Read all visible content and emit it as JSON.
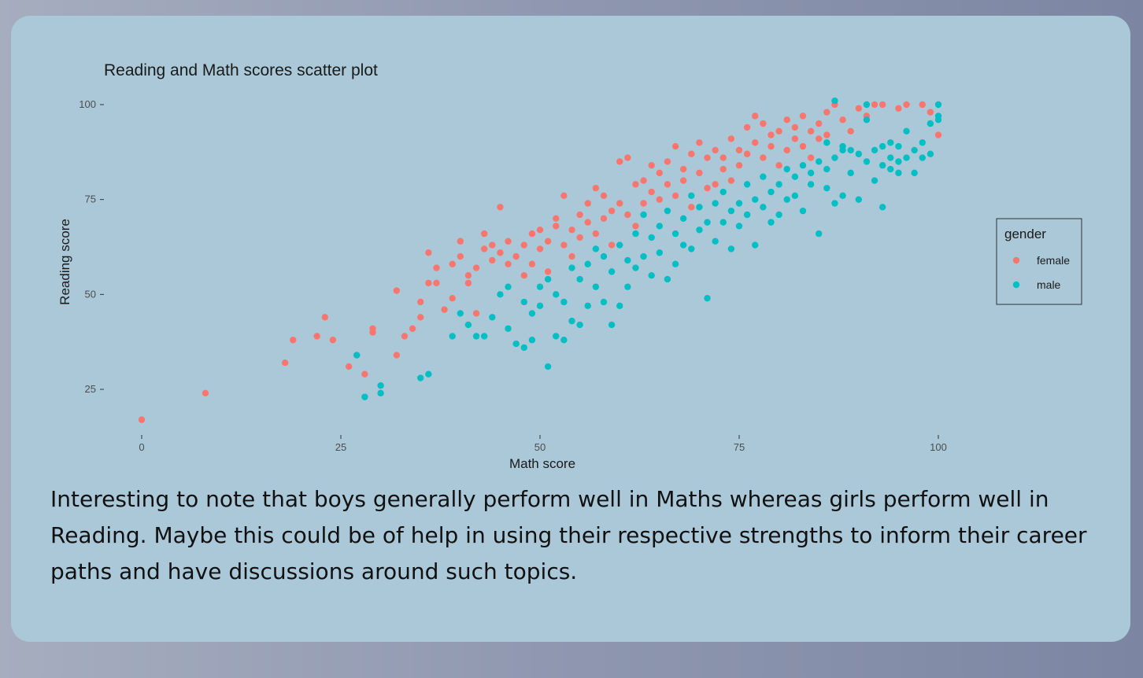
{
  "colors": {
    "female": "#f8766d",
    "male": "#00bfc4",
    "panel": "#aac8d8"
  },
  "chart_data": {
    "type": "scatter",
    "title": "Reading and Math scores scatter plot",
    "xlabel": "Math score",
    "ylabel": "Reading score",
    "xlim": [
      0,
      100
    ],
    "ylim": [
      17,
      100
    ],
    "xticks": [
      0,
      25,
      50,
      75,
      100
    ],
    "yticks": [
      25,
      50,
      75,
      100
    ],
    "grid": false,
    "legend": {
      "title": "gender",
      "position": "right",
      "entries": [
        "female",
        "male"
      ]
    },
    "series": [
      {
        "name": "female",
        "color": "#f8766d",
        "points": [
          [
            0,
            17
          ],
          [
            8,
            24
          ],
          [
            18,
            32
          ],
          [
            19,
            38
          ],
          [
            22,
            39
          ],
          [
            23,
            44
          ],
          [
            24,
            38
          ],
          [
            26,
            31
          ],
          [
            27,
            34
          ],
          [
            28,
            29
          ],
          [
            29,
            40
          ],
          [
            29,
            41
          ],
          [
            32,
            51
          ],
          [
            32,
            34
          ],
          [
            33,
            39
          ],
          [
            34,
            41
          ],
          [
            35,
            44
          ],
          [
            35,
            48
          ],
          [
            36,
            53
          ],
          [
            36,
            61
          ],
          [
            37,
            57
          ],
          [
            37,
            53
          ],
          [
            38,
            46
          ],
          [
            39,
            49
          ],
          [
            39,
            58
          ],
          [
            40,
            64
          ],
          [
            40,
            60
          ],
          [
            41,
            55
          ],
          [
            41,
            53
          ],
          [
            42,
            45
          ],
          [
            42,
            57
          ],
          [
            43,
            62
          ],
          [
            43,
            66
          ],
          [
            44,
            63
          ],
          [
            44,
            59
          ],
          [
            45,
            73
          ],
          [
            45,
            61
          ],
          [
            46,
            64
          ],
          [
            46,
            58
          ],
          [
            47,
            60
          ],
          [
            48,
            63
          ],
          [
            48,
            55
          ],
          [
            49,
            66
          ],
          [
            49,
            58
          ],
          [
            50,
            67
          ],
          [
            50,
            62
          ],
          [
            51,
            64
          ],
          [
            51,
            56
          ],
          [
            52,
            70
          ],
          [
            52,
            68
          ],
          [
            53,
            76
          ],
          [
            53,
            63
          ],
          [
            54,
            67
          ],
          [
            54,
            60
          ],
          [
            55,
            71
          ],
          [
            55,
            65
          ],
          [
            56,
            74
          ],
          [
            56,
            69
          ],
          [
            57,
            78
          ],
          [
            57,
            66
          ],
          [
            58,
            70
          ],
          [
            58,
            76
          ],
          [
            59,
            72
          ],
          [
            59,
            63
          ],
          [
            60,
            85
          ],
          [
            60,
            74
          ],
          [
            61,
            86
          ],
          [
            61,
            71
          ],
          [
            62,
            79
          ],
          [
            62,
            68
          ],
          [
            63,
            74
          ],
          [
            63,
            80
          ],
          [
            64,
            84
          ],
          [
            64,
            77
          ],
          [
            65,
            82
          ],
          [
            65,
            75
          ],
          [
            66,
            85
          ],
          [
            66,
            79
          ],
          [
            67,
            89
          ],
          [
            67,
            76
          ],
          [
            68,
            83
          ],
          [
            68,
            80
          ],
          [
            69,
            87
          ],
          [
            69,
            73
          ],
          [
            70,
            90
          ],
          [
            70,
            82
          ],
          [
            71,
            86
          ],
          [
            71,
            78
          ],
          [
            72,
            88
          ],
          [
            72,
            79
          ],
          [
            73,
            83
          ],
          [
            73,
            86
          ],
          [
            74,
            91
          ],
          [
            74,
            80
          ],
          [
            75,
            88
          ],
          [
            75,
            84
          ],
          [
            76,
            94
          ],
          [
            76,
            87
          ],
          [
            77,
            97
          ],
          [
            77,
            90
          ],
          [
            78,
            95
          ],
          [
            78,
            86
          ],
          [
            79,
            89
          ],
          [
            79,
            92
          ],
          [
            80,
            93
          ],
          [
            80,
            84
          ],
          [
            81,
            96
          ],
          [
            81,
            88
          ],
          [
            82,
            94
          ],
          [
            82,
            91
          ],
          [
            83,
            97
          ],
          [
            83,
            89
          ],
          [
            84,
            93
          ],
          [
            84,
            86
          ],
          [
            85,
            95
          ],
          [
            85,
            91
          ],
          [
            86,
            98
          ],
          [
            86,
            92
          ],
          [
            87,
            100
          ],
          [
            88,
            96
          ],
          [
            89,
            93
          ],
          [
            90,
            99
          ],
          [
            91,
            97
          ],
          [
            92,
            100
          ],
          [
            93,
            100
          ],
          [
            95,
            99
          ],
          [
            96,
            100
          ],
          [
            98,
            100
          ],
          [
            99,
            98
          ],
          [
            100,
            92
          ]
        ]
      },
      {
        "name": "male",
        "color": "#00bfc4",
        "points": [
          [
            27,
            34
          ],
          [
            28,
            23
          ],
          [
            30,
            26
          ],
          [
            30,
            24
          ],
          [
            35,
            28
          ],
          [
            36,
            29
          ],
          [
            39,
            39
          ],
          [
            40,
            45
          ],
          [
            41,
            42
          ],
          [
            42,
            39
          ],
          [
            43,
            39
          ],
          [
            44,
            44
          ],
          [
            45,
            50
          ],
          [
            46,
            41
          ],
          [
            46,
            52
          ],
          [
            47,
            37
          ],
          [
            48,
            36
          ],
          [
            48,
            48
          ],
          [
            49,
            38
          ],
          [
            49,
            45
          ],
          [
            50,
            52
          ],
          [
            50,
            47
          ],
          [
            51,
            31
          ],
          [
            51,
            54
          ],
          [
            52,
            39
          ],
          [
            52,
            50
          ],
          [
            53,
            38
          ],
          [
            53,
            48
          ],
          [
            54,
            57
          ],
          [
            54,
            43
          ],
          [
            55,
            42
          ],
          [
            55,
            54
          ],
          [
            56,
            58
          ],
          [
            56,
            47
          ],
          [
            57,
            62
          ],
          [
            57,
            52
          ],
          [
            58,
            48
          ],
          [
            58,
            60
          ],
          [
            59,
            42
          ],
          [
            59,
            56
          ],
          [
            60,
            63
          ],
          [
            60,
            47
          ],
          [
            61,
            59
          ],
          [
            61,
            52
          ],
          [
            62,
            66
          ],
          [
            62,
            57
          ],
          [
            63,
            71
          ],
          [
            63,
            60
          ],
          [
            64,
            65
          ],
          [
            64,
            55
          ],
          [
            65,
            68
          ],
          [
            65,
            61
          ],
          [
            66,
            72
          ],
          [
            66,
            54
          ],
          [
            67,
            66
          ],
          [
            67,
            58
          ],
          [
            68,
            70
          ],
          [
            68,
            63
          ],
          [
            69,
            76
          ],
          [
            69,
            62
          ],
          [
            70,
            73
          ],
          [
            70,
            67
          ],
          [
            71,
            49
          ],
          [
            71,
            69
          ],
          [
            72,
            74
          ],
          [
            72,
            64
          ],
          [
            73,
            69
          ],
          [
            73,
            77
          ],
          [
            74,
            72
          ],
          [
            74,
            62
          ],
          [
            75,
            74
          ],
          [
            75,
            68
          ],
          [
            76,
            79
          ],
          [
            76,
            71
          ],
          [
            77,
            75
          ],
          [
            77,
            63
          ],
          [
            78,
            81
          ],
          [
            78,
            73
          ],
          [
            79,
            77
          ],
          [
            79,
            69
          ],
          [
            80,
            79
          ],
          [
            80,
            71
          ],
          [
            81,
            83
          ],
          [
            81,
            75
          ],
          [
            82,
            81
          ],
          [
            82,
            76
          ],
          [
            83,
            84
          ],
          [
            83,
            72
          ],
          [
            84,
            79
          ],
          [
            84,
            82
          ],
          [
            85,
            85
          ],
          [
            85,
            66
          ],
          [
            86,
            83
          ],
          [
            86,
            78
          ],
          [
            87,
            86
          ],
          [
            87,
            74
          ],
          [
            88,
            89
          ],
          [
            88,
            76
          ],
          [
            89,
            88
          ],
          [
            89,
            82
          ],
          [
            90,
            87
          ],
          [
            90,
            75
          ],
          [
            91,
            96
          ],
          [
            91,
            85
          ],
          [
            92,
            88
          ],
          [
            92,
            80
          ],
          [
            93,
            84
          ],
          [
            93,
            73
          ],
          [
            94,
            90
          ],
          [
            94,
            83
          ],
          [
            95,
            89
          ],
          [
            95,
            82
          ],
          [
            96,
            93
          ],
          [
            96,
            86
          ],
          [
            97,
            88
          ],
          [
            98,
            90
          ],
          [
            99,
            95
          ],
          [
            99,
            87
          ],
          [
            100,
            97
          ],
          [
            100,
            100
          ],
          [
            87,
            101
          ],
          [
            88,
            88
          ],
          [
            91,
            100
          ],
          [
            94,
            86
          ],
          [
            97,
            82
          ],
          [
            93,
            89
          ],
          [
            95,
            85
          ],
          [
            98,
            86
          ],
          [
            100,
            96
          ],
          [
            86,
            90
          ]
        ]
      }
    ]
  },
  "note": {
    "text": "Interesting to note that boys generally perform well in Maths whereas girls perform well in Reading. Maybe this could be of help in using their respective strengths to inform their career paths and have discussions around such topics."
  }
}
